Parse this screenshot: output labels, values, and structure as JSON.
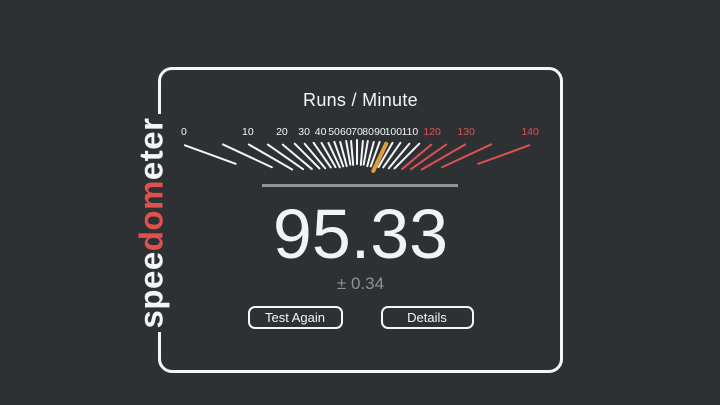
{
  "colors": {
    "background": "#2d3134",
    "frame": "#f3f5f6",
    "text_primary": "#f3f5f6",
    "tick_white": "#f3f5f6",
    "redline": "#e0514e",
    "needle_orange": "#e09c41",
    "value_text": "#f1f3f4",
    "secondary_text": "#8c9196",
    "separator": "#8f9499",
    "logo_red": "#e0514e"
  },
  "logo": {
    "full_text": "speedometer",
    "segments": [
      {
        "text": "spee",
        "tone": "white"
      },
      {
        "text": "dom",
        "tone": "red"
      },
      {
        "text": "eter",
        "tone": "white"
      }
    ]
  },
  "panel": {
    "title": "Runs / Minute",
    "result": {
      "value": "95.33",
      "error": "± 0.34"
    },
    "buttons": {
      "test_again": "Test Again",
      "details": "Details"
    }
  },
  "chart_data": {
    "type": "gauge",
    "title": "Runs / Minute",
    "min": 0,
    "max": 140,
    "minor_tick_step": 5,
    "label_step": 10,
    "tick_labels": [
      0,
      10,
      20,
      30,
      40,
      50,
      60,
      70,
      80,
      90,
      100,
      110,
      120,
      130,
      140
    ],
    "redline_start": 120,
    "value": 95.33,
    "error_margin": 0.34,
    "unit": "Runs / Minute"
  }
}
